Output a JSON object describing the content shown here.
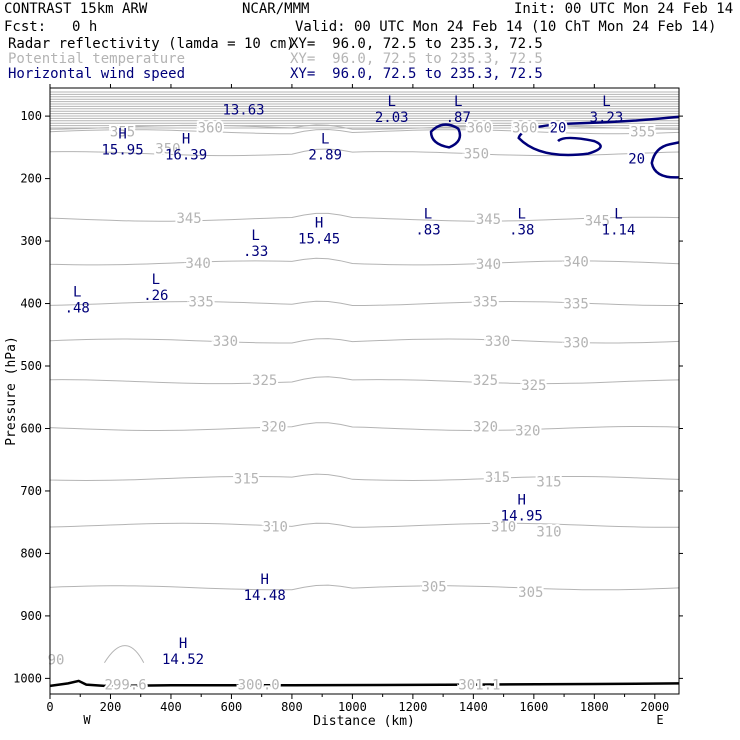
{
  "header": {
    "model": "CONTRAST 15km ARW",
    "org": "NCAR/MMM",
    "init": "Init: 00 UTC Mon 24 Feb 14",
    "fcst_label": "Fcst:",
    "fcst_value": "0 h",
    "valid": "Valid: 00 UTC Mon 24 Feb 14 (10 ChT Mon 24 Feb 14)",
    "fields": [
      {
        "name": "Radar reflectivity (lamda = 10 cm)",
        "xy": "XY=  96.0, 72.5 to 235.3, 72.5",
        "color": "#000000"
      },
      {
        "name": "Potential temperature",
        "xy": "XY=  96.0, 72.5 to 235.3, 72.5",
        "color": "#b4b4b4"
      },
      {
        "name": "Horizontal wind speed",
        "xy": "XY=  96.0, 72.5 to 235.3, 72.5",
        "color": "#00007a"
      }
    ]
  },
  "chart_data": {
    "type": "contour-cross-section",
    "xlabel": "Distance (km)",
    "ylabel": "Pressure (hPa)",
    "xlim": [
      0,
      2080
    ],
    "ylim": [
      1025,
      55
    ],
    "x_ticks": [
      0,
      200,
      400,
      600,
      800,
      1000,
      1200,
      1400,
      1600,
      1800,
      2000
    ],
    "y_ticks": [
      100,
      200,
      300,
      400,
      500,
      600,
      700,
      800,
      900,
      1000
    ],
    "x_end_labels": {
      "left": "W",
      "right": "E"
    },
    "theta_contours": [
      {
        "level": 305,
        "p": 855,
        "labels": [
          {
            "x": 1270,
            "p": 853
          },
          {
            "x": 1590,
            "p": 862
          }
        ]
      },
      {
        "level": 310,
        "p": 755,
        "labels": [
          {
            "x": 745,
            "p": 757
          },
          {
            "x": 1500,
            "p": 757
          },
          {
            "x": 1650,
            "p": 765
          }
        ]
      },
      {
        "level": 315,
        "p": 680,
        "labels": [
          {
            "x": 650,
            "p": 680
          },
          {
            "x": 1480,
            "p": 678
          },
          {
            "x": 1650,
            "p": 685
          }
        ]
      },
      {
        "level": 320,
        "p": 600,
        "labels": [
          {
            "x": 740,
            "p": 597
          },
          {
            "x": 1440,
            "p": 597
          },
          {
            "x": 1580,
            "p": 603
          }
        ]
      },
      {
        "level": 325,
        "p": 525,
        "labels": [
          {
            "x": 710,
            "p": 522
          },
          {
            "x": 1440,
            "p": 522
          },
          {
            "x": 1600,
            "p": 530
          }
        ]
      },
      {
        "level": 330,
        "p": 460,
        "labels": [
          {
            "x": 580,
            "p": 460
          },
          {
            "x": 1480,
            "p": 460
          },
          {
            "x": 1740,
            "p": 462
          }
        ]
      },
      {
        "level": 335,
        "p": 400,
        "labels": [
          {
            "x": 500,
            "p": 397
          },
          {
            "x": 1440,
            "p": 397
          },
          {
            "x": 1740,
            "p": 400
          }
        ]
      },
      {
        "level": 340,
        "p": 335,
        "labels": [
          {
            "x": 490,
            "p": 335
          },
          {
            "x": 1450,
            "p": 337
          },
          {
            "x": 1740,
            "p": 333
          }
        ]
      },
      {
        "level": 345,
        "p": 265,
        "labels": [
          {
            "x": 460,
            "p": 263
          },
          {
            "x": 1450,
            "p": 265
          },
          {
            "x": 1810,
            "p": 267
          }
        ]
      },
      {
        "level": 350,
        "p": 160,
        "labels": [
          {
            "x": 390,
            "p": 152
          },
          {
            "x": 1410,
            "p": 160
          }
        ]
      },
      {
        "level": 355,
        "p": 125,
        "labels": [
          {
            "x": 240,
            "p": 125
          },
          {
            "x": 1960,
            "p": 125
          }
        ]
      },
      {
        "level": 360,
        "p": 118,
        "labels": [
          {
            "x": 530,
            "p": 118
          },
          {
            "x": 1420,
            "p": 118
          },
          {
            "x": 1570,
            "p": 118
          }
        ]
      }
    ],
    "theta_near_surface": [
      {
        "text": "299.6",
        "x": 250,
        "p": 1010
      },
      {
        "text": "300.0",
        "x": 690,
        "p": 1010
      },
      {
        "text": "301.1",
        "x": 1420,
        "p": 1010
      },
      {
        "text": "90",
        "x": 20,
        "p": 970
      }
    ],
    "wind_contours": [
      {
        "level": 20,
        "labels": [
          {
            "x": 1680,
            "p": 118
          },
          {
            "x": 1940,
            "p": 168
          }
        ]
      }
    ],
    "extrema": [
      {
        "type": "H",
        "value": "15.95",
        "x": 240,
        "p": 142
      },
      {
        "type": "H",
        "value": "16.39",
        "x": 450,
        "p": 150
      },
      {
        "type": "",
        "value": "13.63",
        "x": 640,
        "p": 78
      },
      {
        "type": "L",
        "value": "2.89",
        "x": 910,
        "p": 150
      },
      {
        "type": "L",
        "value": "2.03",
        "x": 1130,
        "p": 90
      },
      {
        "type": "L",
        "value": ".87",
        "x": 1350,
        "p": 90
      },
      {
        "type": "L",
        "value": "3.23",
        "x": 1840,
        "p": 90
      },
      {
        "type": "L",
        "value": ".83",
        "x": 1250,
        "p": 270
      },
      {
        "type": "L",
        "value": ".38",
        "x": 1560,
        "p": 270
      },
      {
        "type": "L",
        "value": "1.14",
        "x": 1880,
        "p": 270
      },
      {
        "type": "H",
        "value": "15.45",
        "x": 890,
        "p": 285
      },
      {
        "type": "L",
        "value": ".33",
        "x": 680,
        "p": 305
      },
      {
        "type": "L",
        "value": ".26",
        "x": 350,
        "p": 375
      },
      {
        "type": "L",
        "value": ".48",
        "x": 90,
        "p": 395
      },
      {
        "type": "H",
        "value": "14.95",
        "x": 1560,
        "p": 728
      },
      {
        "type": "H",
        "value": "14.48",
        "x": 710,
        "p": 855
      },
      {
        "type": "H",
        "value": "14.52",
        "x": 440,
        "p": 958
      }
    ],
    "terrain_surface": [
      [
        0,
        1012
      ],
      [
        60,
        1008
      ],
      [
        95,
        1004
      ],
      [
        120,
        1010
      ],
      [
        180,
        1012
      ],
      [
        400,
        1011
      ],
      [
        800,
        1011
      ],
      [
        1400,
        1010
      ],
      [
        1800,
        1009
      ],
      [
        2080,
        1008
      ]
    ]
  }
}
